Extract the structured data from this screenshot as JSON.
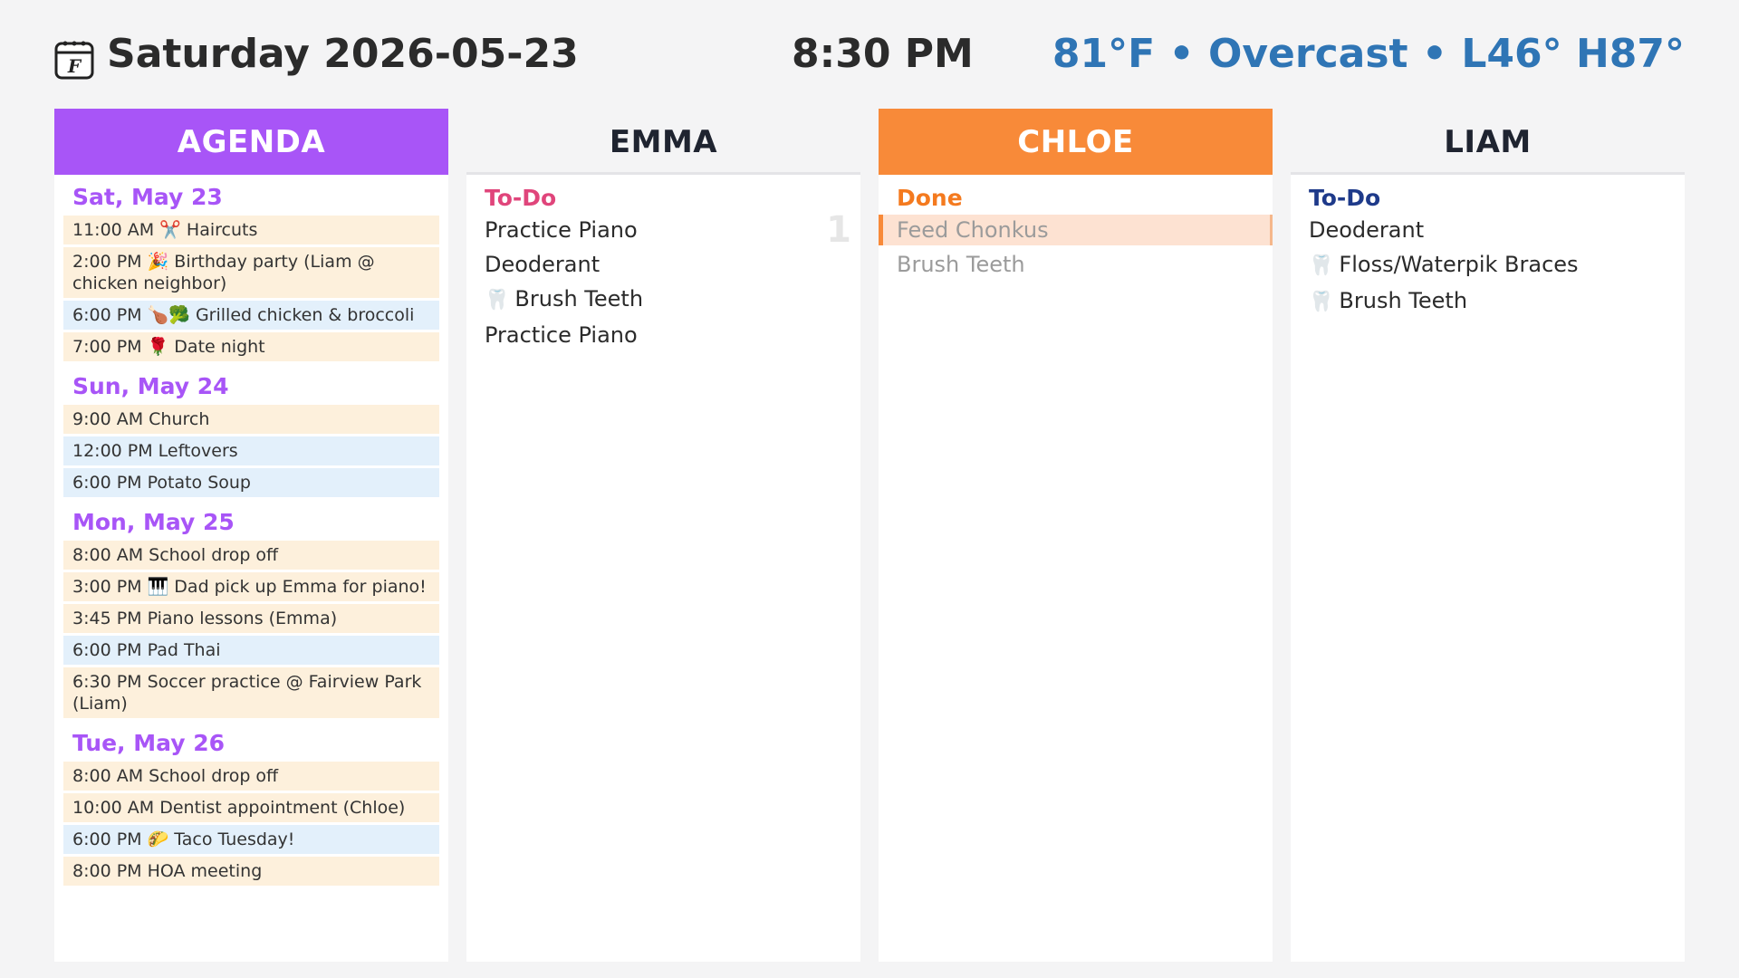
{
  "header": {
    "date": "Saturday 2026-05-23",
    "time": "8:30 PM",
    "weather": "81°F • Overcast • L46° H87°",
    "calendar_icon": "calendar-icon",
    "calendar_letter": "F"
  },
  "colors": {
    "agenda_header": "#a855f7",
    "chloe_header": "#f88a39",
    "activity_bg": "#fdf0dc",
    "meal_bg": "#e3f0fb",
    "weather": "#2f75b5",
    "todo_emma": "#e0457b",
    "done_chloe": "#f47a1f",
    "todo_liam": "#1e3a8a"
  },
  "agenda": {
    "title": "AGENDA",
    "days": [
      {
        "label": "Sat, May 23",
        "events": [
          {
            "text": "11:00 AM ✂️ Haircuts",
            "kind": "activity"
          },
          {
            "text": "2:00 PM 🎉 Birthday party (Liam @ chicken neighbor)",
            "kind": "activity"
          },
          {
            "text": "6:00 PM 🍗🥦 Grilled chicken & broccoli",
            "kind": "meal"
          },
          {
            "text": "7:00 PM 🌹 Date night",
            "kind": "activity"
          }
        ]
      },
      {
        "label": "Sun, May 24",
        "events": [
          {
            "text": "9:00 AM Church",
            "kind": "activity"
          },
          {
            "text": "12:00 PM Leftovers",
            "kind": "meal"
          },
          {
            "text": "6:00 PM Potato Soup",
            "kind": "meal"
          }
        ]
      },
      {
        "label": "Mon, May 25",
        "events": [
          {
            "text": "8:00 AM School drop off",
            "kind": "activity"
          },
          {
            "text": "3:00 PM 🎹 Dad pick up Emma for piano!",
            "kind": "activity"
          },
          {
            "text": "3:45 PM Piano lessons (Emma)",
            "kind": "activity"
          },
          {
            "text": "6:00 PM Pad Thai",
            "kind": "meal"
          },
          {
            "text": "6:30 PM Soccer practice @ Fairview Park (Liam)",
            "kind": "activity"
          }
        ]
      },
      {
        "label": "Tue, May 26",
        "events": [
          {
            "text": "8:00 AM School drop off",
            "kind": "activity"
          },
          {
            "text": "10:00 AM Dentist appointment (Chloe)",
            "kind": "activity"
          },
          {
            "text": "6:00 PM 🌮 Taco Tuesday!",
            "kind": "meal"
          },
          {
            "text": "8:00 PM HOA meeting",
            "kind": "activity"
          }
        ]
      }
    ]
  },
  "people": [
    {
      "name": "EMMA",
      "section": "To-Do",
      "count": "1",
      "tasks": [
        {
          "text": "Practice Piano",
          "icon": ""
        },
        {
          "text": "Deoderant",
          "icon": ""
        },
        {
          "text": "Brush Teeth",
          "icon": "tooth-icon"
        },
        {
          "text": "Practice Piano",
          "icon": ""
        }
      ]
    },
    {
      "name": "CHLOE",
      "section": "Done",
      "tasks": [
        {
          "text": "Feed Chonkus",
          "icon": "",
          "highlight": true
        },
        {
          "text": "Brush Teeth",
          "icon": ""
        }
      ]
    },
    {
      "name": "LIAM",
      "section": "To-Do",
      "tasks": [
        {
          "text": "Deoderant",
          "icon": ""
        },
        {
          "text": "Floss/Waterpik Braces",
          "icon": "tooth-icon"
        },
        {
          "text": "Brush Teeth",
          "icon": "tooth-icon"
        }
      ]
    }
  ]
}
